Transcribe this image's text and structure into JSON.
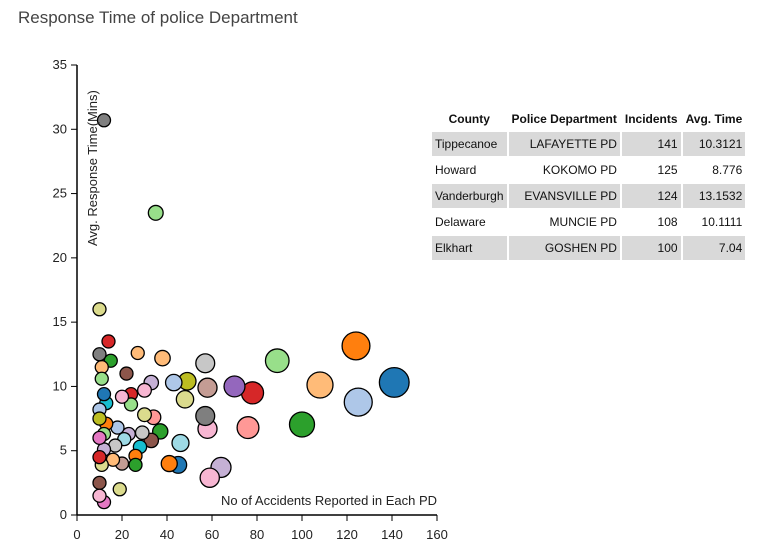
{
  "title": "Response Time of police Department",
  "chart_data": {
    "type": "scatter",
    "title": "Response Time of police Department",
    "xlabel": "No of Accidents Reported in Each PD",
    "ylabel": "Avg. Response Time(Mins)",
    "xlim": [
      0,
      160
    ],
    "ylim": [
      0,
      35
    ],
    "xticks": [
      "0",
      "20",
      "40",
      "60",
      "80",
      "100",
      "120",
      "140",
      "160"
    ],
    "yticks": [
      "0",
      "5",
      "10",
      "15",
      "20",
      "25",
      "30",
      "35"
    ],
    "grid": false,
    "points": [
      {
        "x": 141,
        "y": 10.31,
        "color": "#1f77b4"
      },
      {
        "x": 125,
        "y": 8.78,
        "color": "#aec7e8"
      },
      {
        "x": 124,
        "y": 13.15,
        "color": "#ff7f0e"
      },
      {
        "x": 108,
        "y": 10.11,
        "color": "#ffbb78"
      },
      {
        "x": 100,
        "y": 7.04,
        "color": "#2ca02c"
      },
      {
        "x": 89,
        "y": 12.0,
        "color": "#98df8a"
      },
      {
        "x": 78,
        "y": 9.5,
        "color": "#d62728"
      },
      {
        "x": 76,
        "y": 6.8,
        "color": "#ff9896"
      },
      {
        "x": 70,
        "y": 10.0,
        "color": "#9467bd"
      },
      {
        "x": 64,
        "y": 3.7,
        "color": "#c5b0d5"
      },
      {
        "x": 59,
        "y": 2.9,
        "color": "#f7b6d2"
      },
      {
        "x": 58,
        "y": 9.9,
        "color": "#c49c94"
      },
      {
        "x": 57,
        "y": 11.8,
        "color": "#c7c7c7"
      },
      {
        "x": 57,
        "y": 7.7,
        "color": "#7f7f7f"
      },
      {
        "x": 58,
        "y": 6.7,
        "color": "#f7b6d2"
      },
      {
        "x": 48,
        "y": 9.0,
        "color": "#dbdb8d"
      },
      {
        "x": 49,
        "y": 10.4,
        "color": "#bcbd22"
      },
      {
        "x": 43,
        "y": 10.3,
        "color": "#aec7e8"
      },
      {
        "x": 46,
        "y": 5.6,
        "color": "#9edae5"
      },
      {
        "x": 45,
        "y": 3.9,
        "color": "#1f77b4"
      },
      {
        "x": 41,
        "y": 4.0,
        "color": "#ff7f0e"
      },
      {
        "x": 38,
        "y": 12.2,
        "color": "#ffbb78"
      },
      {
        "x": 35,
        "y": 23.5,
        "color": "#98df8a"
      },
      {
        "x": 37,
        "y": 6.5,
        "color": "#2ca02c"
      },
      {
        "x": 33,
        "y": 10.3,
        "color": "#c5b0d5"
      },
      {
        "x": 34,
        "y": 7.6,
        "color": "#ff9896"
      },
      {
        "x": 33,
        "y": 5.8,
        "color": "#8c564b"
      },
      {
        "x": 30,
        "y": 9.7,
        "color": "#f7b6d2"
      },
      {
        "x": 30,
        "y": 7.8,
        "color": "#dbdb8d"
      },
      {
        "x": 29,
        "y": 6.4,
        "color": "#c7c7c7"
      },
      {
        "x": 28,
        "y": 5.3,
        "color": "#17becf"
      },
      {
        "x": 27,
        "y": 12.6,
        "color": "#ffbb78"
      },
      {
        "x": 26,
        "y": 4.6,
        "color": "#ff7f0e"
      },
      {
        "x": 26,
        "y": 3.9,
        "color": "#2ca02c"
      },
      {
        "x": 24,
        "y": 9.4,
        "color": "#d62728"
      },
      {
        "x": 24,
        "y": 8.6,
        "color": "#98df8a"
      },
      {
        "x": 23,
        "y": 6.3,
        "color": "#c5b0d5"
      },
      {
        "x": 22,
        "y": 11.0,
        "color": "#8c564b"
      },
      {
        "x": 21,
        "y": 5.9,
        "color": "#9edae5"
      },
      {
        "x": 20,
        "y": 9.2,
        "color": "#f7b6d2"
      },
      {
        "x": 20,
        "y": 4.0,
        "color": "#c49c94"
      },
      {
        "x": 19,
        "y": 2.0,
        "color": "#dbdb8d"
      },
      {
        "x": 18,
        "y": 6.8,
        "color": "#aec7e8"
      },
      {
        "x": 17,
        "y": 5.4,
        "color": "#c7c7c7"
      },
      {
        "x": 16,
        "y": 4.3,
        "color": "#ffbb78"
      },
      {
        "x": 15,
        "y": 12.0,
        "color": "#2ca02c"
      },
      {
        "x": 14,
        "y": 13.5,
        "color": "#d62728"
      },
      {
        "x": 13,
        "y": 8.7,
        "color": "#17becf"
      },
      {
        "x": 13,
        "y": 7.1,
        "color": "#ff7f0e"
      },
      {
        "x": 12,
        "y": 30.7,
        "color": "#7f7f7f"
      },
      {
        "x": 12,
        "y": 9.4,
        "color": "#1f77b4"
      },
      {
        "x": 12,
        "y": 6.3,
        "color": "#98df8a"
      },
      {
        "x": 12,
        "y": 5.1,
        "color": "#c5b0d5"
      },
      {
        "x": 12,
        "y": 1.0,
        "color": "#e377c2"
      },
      {
        "x": 11,
        "y": 11.5,
        "color": "#ffbb78"
      },
      {
        "x": 11,
        "y": 10.6,
        "color": "#98df8a"
      },
      {
        "x": 11,
        "y": 3.9,
        "color": "#dbdb8d"
      },
      {
        "x": 10,
        "y": 16.0,
        "color": "#dbdb8d"
      },
      {
        "x": 10,
        "y": 12.5,
        "color": "#7f7f7f"
      },
      {
        "x": 10,
        "y": 8.2,
        "color": "#aec7e8"
      },
      {
        "x": 10,
        "y": 7.5,
        "color": "#bcbd22"
      },
      {
        "x": 10,
        "y": 6.0,
        "color": "#e377c2"
      },
      {
        "x": 10,
        "y": 4.5,
        "color": "#d62728"
      },
      {
        "x": 10,
        "y": 2.5,
        "color": "#8c564b"
      },
      {
        "x": 10,
        "y": 1.5,
        "color": "#f7b6d2"
      }
    ]
  },
  "table": {
    "headers": [
      "County",
      "Police Department",
      "Incidents",
      "Avg. Time"
    ],
    "rows": [
      {
        "county": "Tippecanoe",
        "pd": "LAFAYETTE PD",
        "incidents": "141",
        "avg": "10.3121"
      },
      {
        "county": "Howard",
        "pd": "KOKOMO PD",
        "incidents": "125",
        "avg": "8.776"
      },
      {
        "county": "Vanderburgh",
        "pd": "EVANSVILLE PD",
        "incidents": "124",
        "avg": "13.1532"
      },
      {
        "county": "Delaware",
        "pd": "MUNCIE PD",
        "incidents": "108",
        "avg": "10.1111"
      },
      {
        "county": "Elkhart",
        "pd": "GOSHEN PD",
        "incidents": "100",
        "avg": "7.04"
      }
    ]
  }
}
